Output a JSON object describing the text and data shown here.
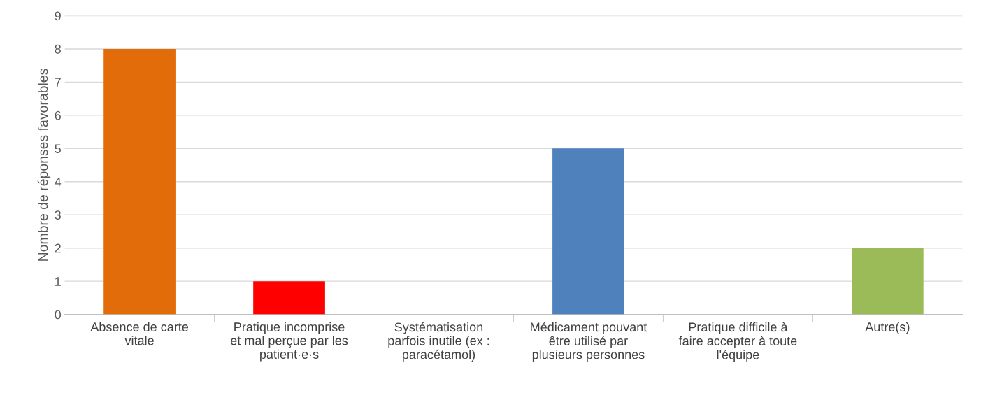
{
  "chart_data": {
    "type": "bar",
    "ylabel": "Nombre de réponses favorables",
    "categories": [
      "Absence de carte\nvitale",
      "Pratique incomprise\net mal perçue par les\npatient·e·s",
      "Systématisation\nparfois inutile (ex :\nparacétamol)",
      "Médicament pouvant\nêtre utilisé par\nplusieurs personnes",
      "Pratique difficile à\nfaire accepter à toute\nl'équipe",
      "Autre(s)"
    ],
    "values": [
      8,
      1,
      0,
      5,
      0,
      2
    ],
    "colors": [
      "#e36c0a",
      "#ff0000",
      "#4f81bd",
      "#4f81bd",
      "#4f81bd",
      "#9bbb59"
    ],
    "ylim": [
      0,
      9
    ],
    "yticks": [
      0,
      1,
      2,
      3,
      4,
      5,
      6,
      7,
      8,
      9
    ],
    "grid": "y",
    "legend": false
  }
}
